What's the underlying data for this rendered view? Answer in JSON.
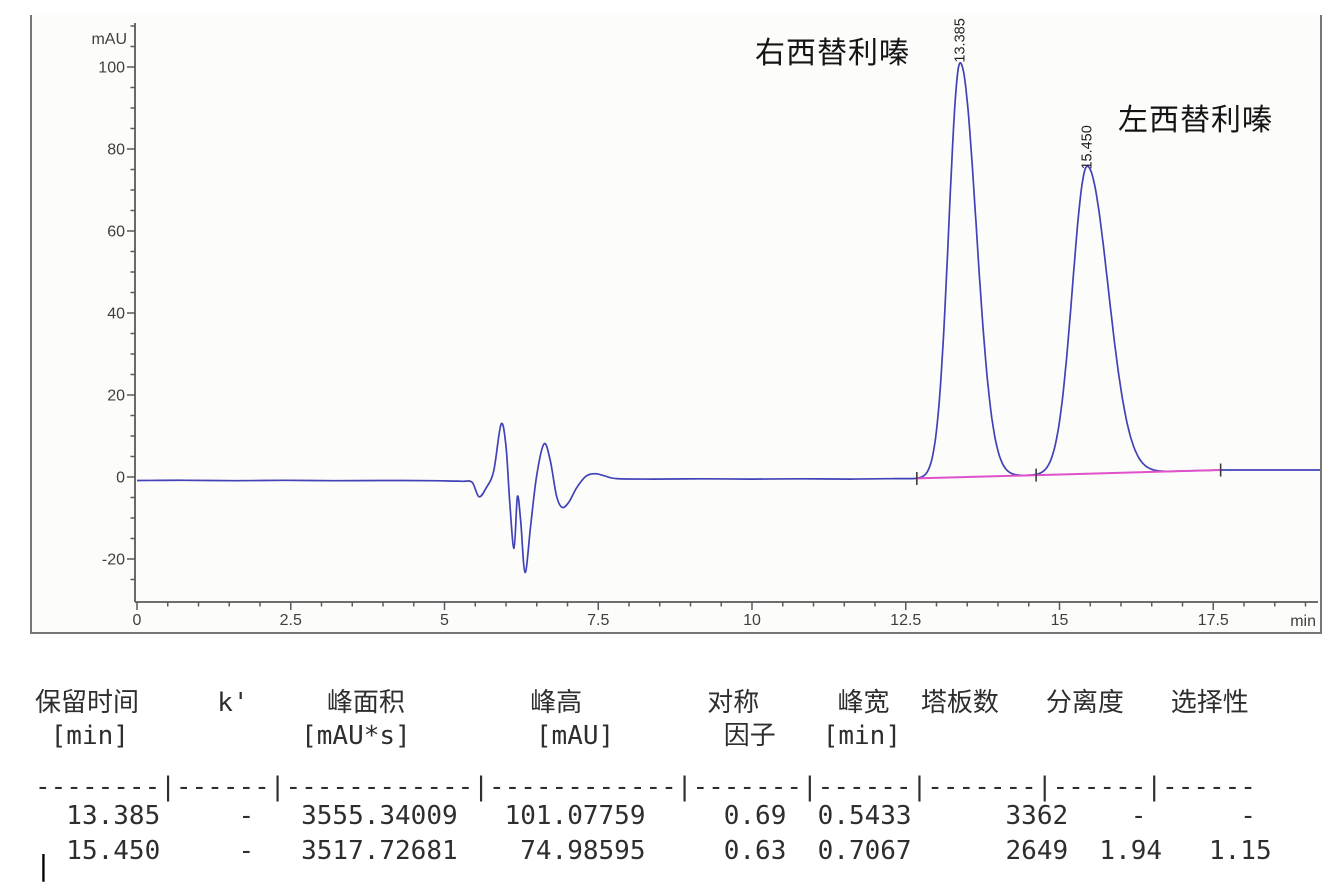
{
  "chart_data": {
    "type": "line",
    "title": "",
    "xlabel": "min",
    "ylabel": "mAU",
    "xlim": [
      0,
      19.25
    ],
    "ylim": [
      -30,
      110
    ],
    "grid": false,
    "x_major_ticks": [
      0,
      2.5,
      5,
      7.5,
      10,
      12.5,
      15,
      17.5
    ],
    "x_minor_step": 0.5,
    "y_major_ticks": [
      -20,
      0,
      20,
      40,
      60,
      80,
      100
    ],
    "y_minor_step": 5,
    "colors": {
      "trace": "#4141b8",
      "integration_baseline": "#e052cc",
      "axis": "#5a5a5a",
      "tick_text": "#3f3f3f",
      "frame": "#767676",
      "plot_bg": "#fcfcfa",
      "peak_label_text": "#222222"
    },
    "series": [
      {
        "name": "signal",
        "color": "#4141b8",
        "trace_points": [
          [
            0,
            -0.85
          ],
          [
            0.8,
            -0.8
          ],
          [
            1.6,
            -0.9
          ],
          [
            2.4,
            -0.8
          ],
          [
            3.2,
            -0.9
          ],
          [
            4.0,
            -0.85
          ],
          [
            4.8,
            -0.9
          ],
          [
            5.15,
            -1.0
          ],
          [
            5.3,
            -1.05
          ],
          [
            5.45,
            -1.3
          ],
          [
            5.56,
            -4.8
          ],
          [
            5.68,
            -2.6
          ],
          [
            5.8,
            1.5
          ],
          [
            5.92,
            12.9
          ],
          [
            6.0,
            7.5
          ],
          [
            6.06,
            -6.0
          ],
          [
            6.13,
            -17.4
          ],
          [
            6.185,
            -4.8
          ],
          [
            6.24,
            -11.0
          ],
          [
            6.31,
            -23.3
          ],
          [
            6.4,
            -12.0
          ],
          [
            6.5,
            0.5
          ],
          [
            6.62,
            8.1
          ],
          [
            6.72,
            4.0
          ],
          [
            6.82,
            -4.5
          ],
          [
            6.91,
            -7.4
          ],
          [
            7.02,
            -6.2
          ],
          [
            7.15,
            -2.6
          ],
          [
            7.3,
            0.2
          ],
          [
            7.45,
            0.8
          ],
          [
            7.6,
            0.3
          ],
          [
            7.8,
            -0.4
          ],
          [
            8.4,
            -0.5
          ],
          [
            9.2,
            -0.45
          ],
          [
            10.0,
            -0.5
          ],
          [
            10.8,
            -0.45
          ],
          [
            11.6,
            -0.5
          ],
          [
            12.2,
            -0.42
          ]
        ],
        "peaks": [
          {
            "rt": 13.385,
            "label": "13.385",
            "height": 101.08,
            "sigma_left": 0.185,
            "sigma_right": 0.26
          },
          {
            "rt": 15.45,
            "label": "15.450",
            "height": 74.99,
            "sigma_left": 0.24,
            "sigma_right": 0.34
          }
        ]
      },
      {
        "name": "integration-baseline",
        "color": "#e052cc",
        "points": [
          [
            12.68,
            -0.35
          ],
          [
            17.62,
            1.7
          ]
        ]
      }
    ],
    "integration_tick_marks": [
      [
        12.68,
        -0.35
      ],
      [
        14.62,
        0.46
      ],
      [
        17.62,
        1.7
      ]
    ],
    "peak_annotations": [
      {
        "text": "右西替利嗪",
        "peak_rt": 13.385
      },
      {
        "text": "左西替利嗪",
        "peak_rt": 15.45
      }
    ]
  },
  "table": {
    "headers": [
      {
        "title": "保留时间",
        "unit": "[min]"
      },
      {
        "title": "k'",
        "unit": ""
      },
      {
        "title": "峰面积",
        "unit": "[mAU*s]"
      },
      {
        "title": "峰高",
        "unit": "[mAU]"
      },
      {
        "title": "对称",
        "unit": "因子"
      },
      {
        "title": "峰宽",
        "unit": "[min]"
      },
      {
        "title": "塔板数",
        "unit": ""
      },
      {
        "title": "分离度",
        "unit": ""
      },
      {
        "title": "选择性",
        "unit": ""
      }
    ],
    "rows": [
      [
        "13.385",
        "-",
        "3555.34009",
        "101.07759",
        "0.69",
        "0.5433",
        "3362",
        "-",
        "-"
      ],
      [
        "15.450",
        "-",
        "3517.72681",
        "74.98595",
        "0.63",
        "0.7067",
        "2649",
        "1.94",
        "1.15"
      ]
    ],
    "lines": [
      "保留时间     k'     峰面积        峰高        对称     峰宽  塔板数   分离度   选择性",
      " [min]           [mAU*s]        [mAU]       因子   [min]",
      "--------|------|------------|------------|-------|------|-------|------|------",
      "  13.385     -   3555.34009   101.07759     0.69  0.5433      3362    -      -",
      "  15.450     -   3517.72681    74.98595     0.63  0.7067      2649  1.94   1.15"
    ]
  },
  "misc": {
    "cursor_mark": "|"
  }
}
